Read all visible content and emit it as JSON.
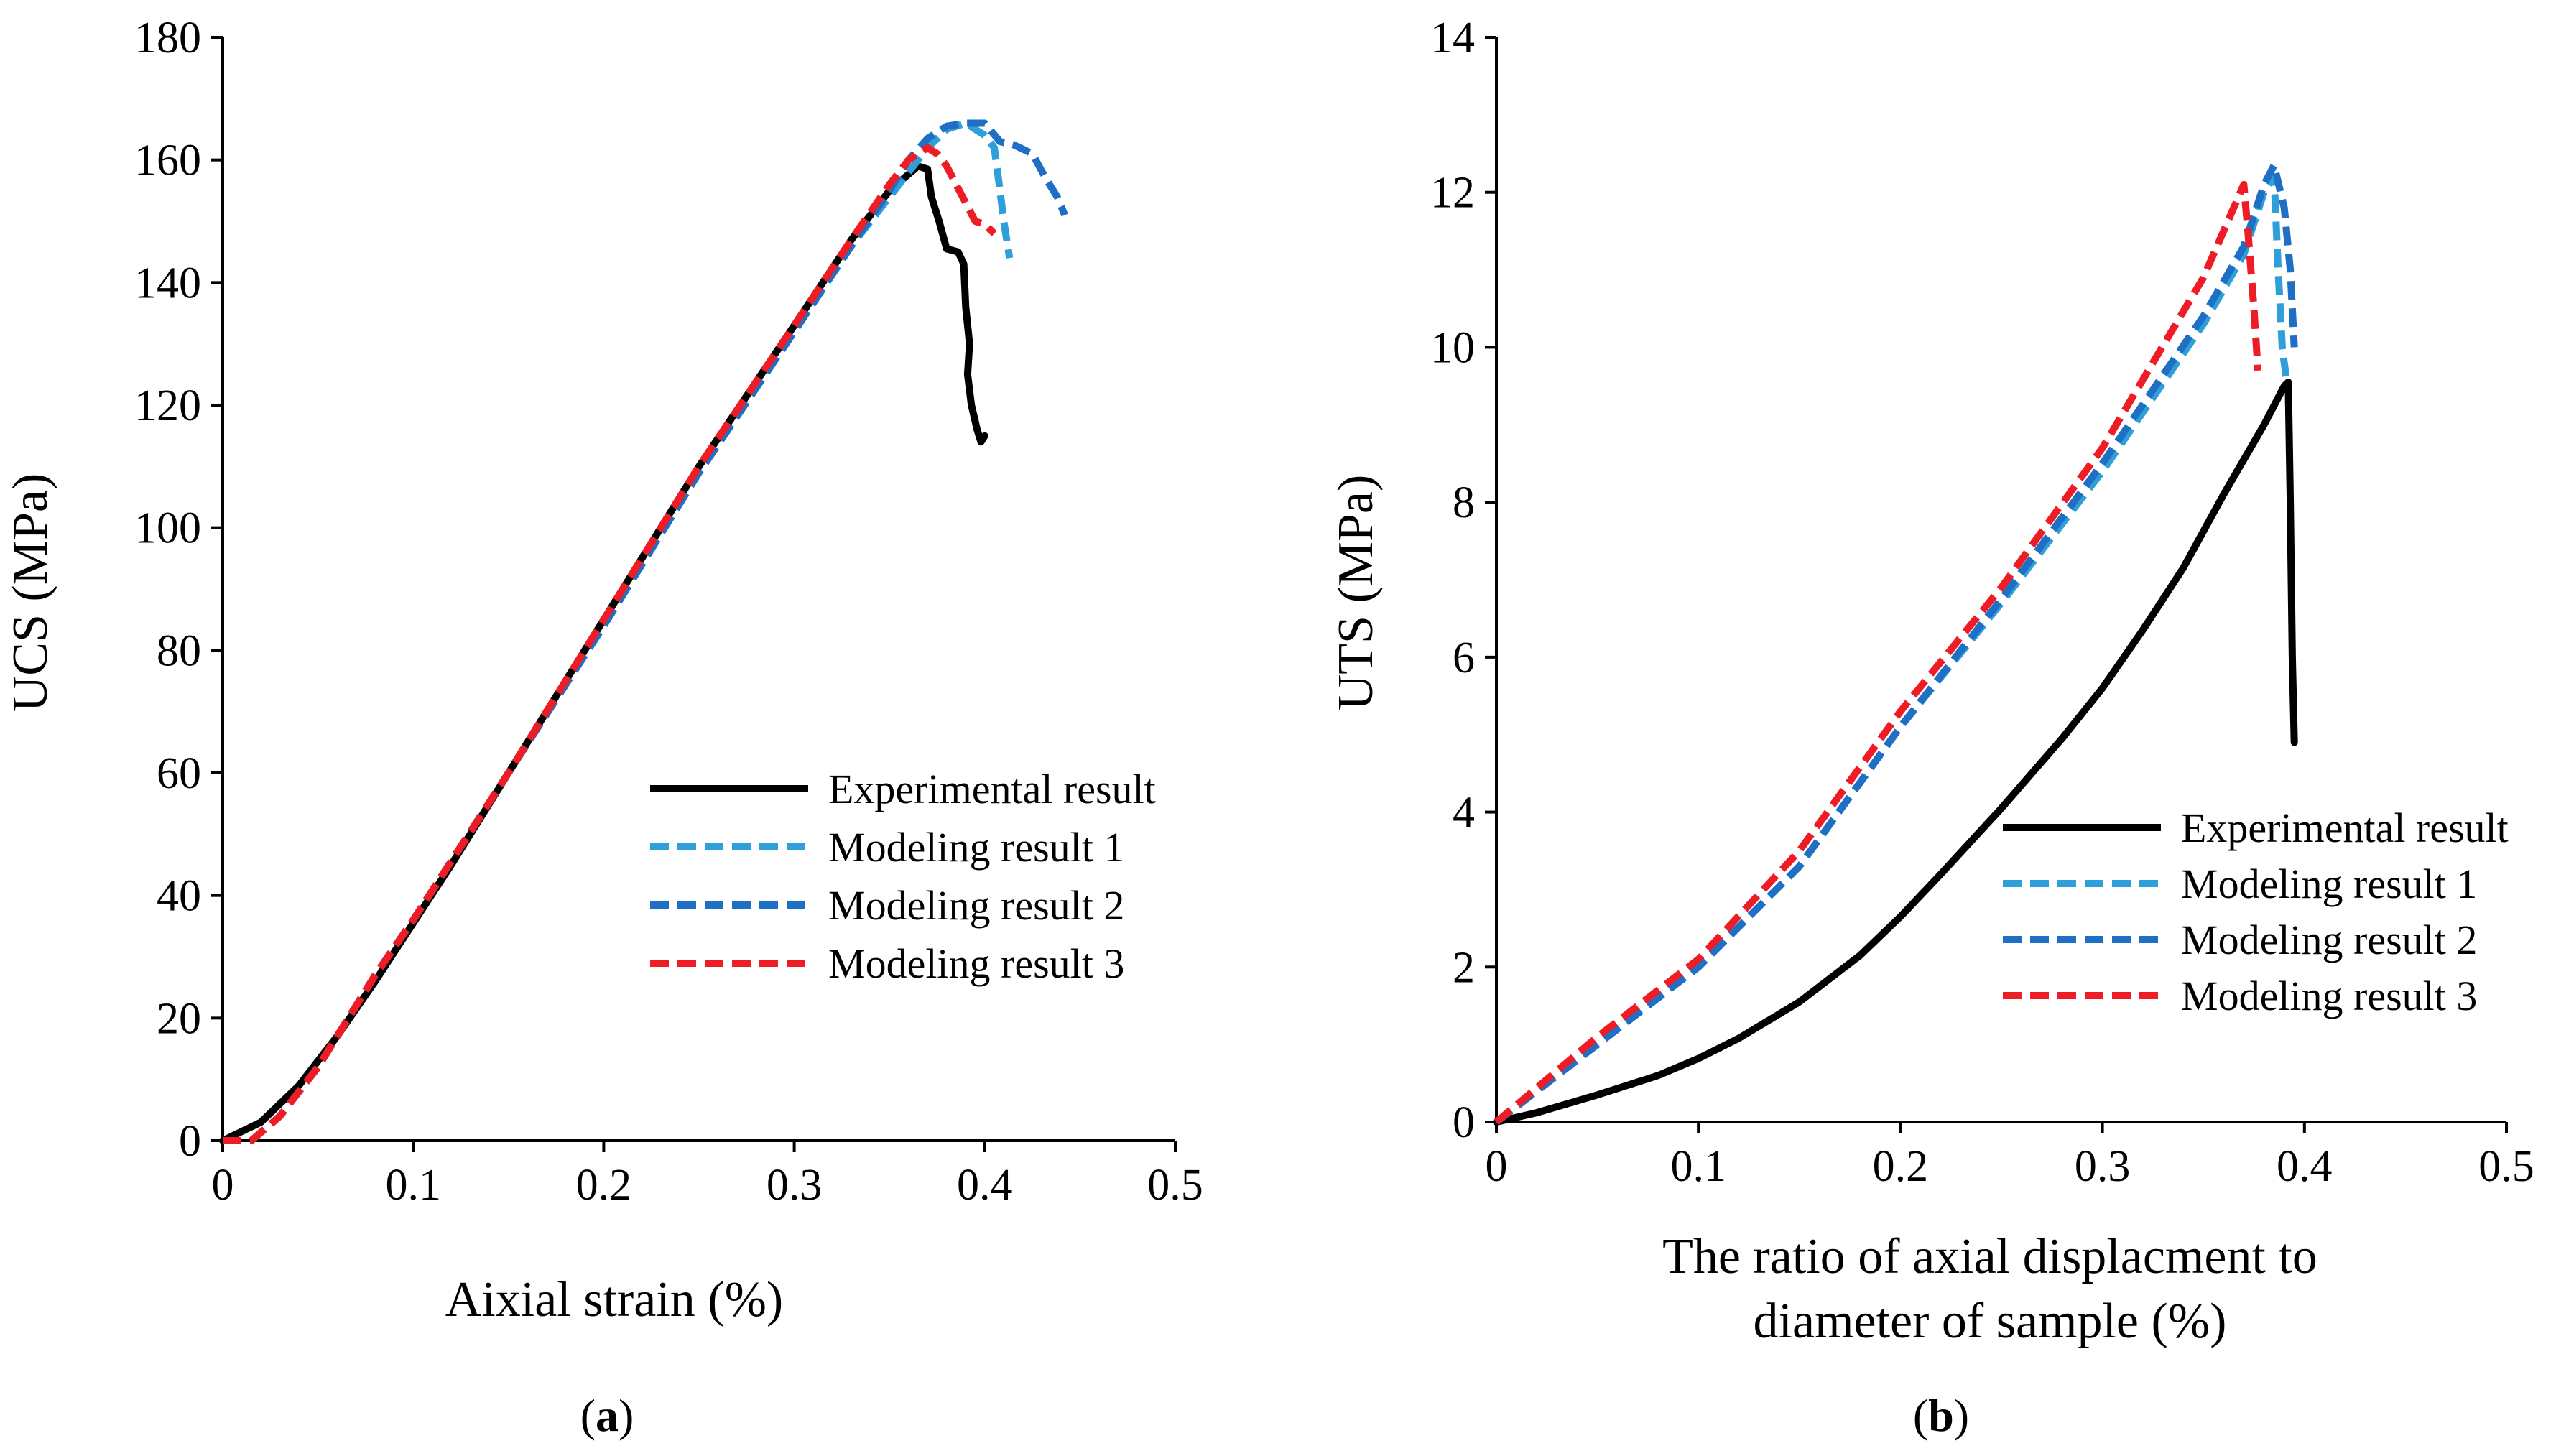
{
  "chart_data": [
    {
      "type": "line",
      "id": "a",
      "caption_open": "(",
      "caption_letter": "a",
      "caption_close": ")",
      "title": "",
      "xlabel": "Aixial strain (%)",
      "ylabel": "UCS (MPa)",
      "xlim": [
        0,
        0.5
      ],
      "ylim": [
        0,
        180
      ],
      "xticks": [
        0,
        0.1,
        0.2,
        0.3,
        0.4,
        0.5
      ],
      "xtick_labels": [
        "0",
        "0.1",
        "0.2",
        "0.3",
        "0.4",
        "0.5"
      ],
      "yticks": [
        0,
        20,
        40,
        60,
        80,
        100,
        120,
        140,
        160,
        180
      ],
      "ytick_labels": [
        "0",
        "20",
        "40",
        "60",
        "80",
        "100",
        "120",
        "140",
        "160",
        "180"
      ],
      "grid": false,
      "legend_position": "center-right",
      "series": [
        {
          "name": "Experimental result",
          "color": "#000000",
          "dash": "solid",
          "points": [
            [
              0,
              0
            ],
            [
              0.02,
              3
            ],
            [
              0.04,
              9
            ],
            [
              0.06,
              17
            ],
            [
              0.08,
              26
            ],
            [
              0.1,
              35.5
            ],
            [
              0.12,
              45
            ],
            [
              0.15,
              60
            ],
            [
              0.2,
              85
            ],
            [
              0.25,
              110
            ],
            [
              0.3,
              133
            ],
            [
              0.33,
              147
            ],
            [
              0.35,
              155
            ],
            [
              0.365,
              159
            ],
            [
              0.37,
              158.5
            ],
            [
              0.372,
              154
            ],
            [
              0.376,
              150
            ],
            [
              0.38,
              145.5
            ],
            [
              0.386,
              145
            ],
            [
              0.389,
              143
            ],
            [
              0.39,
              136
            ],
            [
              0.392,
              130
            ],
            [
              0.391,
              125
            ],
            [
              0.393,
              120
            ],
            [
              0.396,
              116
            ],
            [
              0.398,
              114
            ],
            [
              0.4,
              115
            ]
          ]
        },
        {
          "name": "Modeling result 1",
          "color": "#2f9fda",
          "dash": "dashed",
          "points": [
            [
              0,
              0
            ],
            [
              0.015,
              0
            ],
            [
              0.03,
              4
            ],
            [
              0.05,
              12
            ],
            [
              0.08,
              27
            ],
            [
              0.1,
              36
            ],
            [
              0.15,
              60
            ],
            [
              0.2,
              84
            ],
            [
              0.25,
              109
            ],
            [
              0.3,
              132
            ],
            [
              0.33,
              146
            ],
            [
              0.35,
              154
            ],
            [
              0.36,
              158
            ],
            [
              0.37,
              162
            ],
            [
              0.38,
              165
            ],
            [
              0.39,
              166
            ],
            [
              0.4,
              164
            ],
            [
              0.405,
              162
            ],
            [
              0.408,
              155
            ],
            [
              0.41,
              150
            ],
            [
              0.413,
              144
            ]
          ]
        },
        {
          "name": "Modeling result 2",
          "color": "#1f6fc4",
          "dash": "dashed",
          "points": [
            [
              0,
              0
            ],
            [
              0.015,
              0
            ],
            [
              0.03,
              4
            ],
            [
              0.05,
              12
            ],
            [
              0.08,
              27
            ],
            [
              0.1,
              36
            ],
            [
              0.15,
              60
            ],
            [
              0.2,
              84
            ],
            [
              0.25,
              109
            ],
            [
              0.3,
              132
            ],
            [
              0.33,
              146
            ],
            [
              0.35,
              155
            ],
            [
              0.36,
              160
            ],
            [
              0.37,
              163.5
            ],
            [
              0.38,
              165.5
            ],
            [
              0.39,
              166
            ],
            [
              0.4,
              166
            ],
            [
              0.408,
              163
            ],
            [
              0.415,
              162.5
            ],
            [
              0.425,
              161
            ],
            [
              0.432,
              157
            ],
            [
              0.438,
              154
            ],
            [
              0.442,
              151
            ]
          ]
        },
        {
          "name": "Modeling result 3",
          "color": "#ee1c25",
          "dash": "dashed",
          "points": [
            [
              0,
              0
            ],
            [
              0.015,
              0
            ],
            [
              0.03,
              4
            ],
            [
              0.05,
              12
            ],
            [
              0.08,
              27
            ],
            [
              0.1,
              36
            ],
            [
              0.15,
              60
            ],
            [
              0.2,
              85
            ],
            [
              0.25,
              110
            ],
            [
              0.3,
              133
            ],
            [
              0.33,
              147
            ],
            [
              0.35,
              156
            ],
            [
              0.36,
              160
            ],
            [
              0.37,
              162
            ],
            [
              0.375,
              161
            ],
            [
              0.38,
              159
            ],
            [
              0.385,
              156
            ],
            [
              0.39,
              153
            ],
            [
              0.395,
              150
            ],
            [
              0.4,
              149.5
            ],
            [
              0.405,
              148
            ]
          ]
        }
      ]
    },
    {
      "type": "line",
      "id": "b",
      "caption_open": "(",
      "caption_letter": "b",
      "caption_close": ")",
      "title": "",
      "xlabel_lines": [
        "The ratio of axial displacment to",
        "diameter of sample (%)"
      ],
      "ylabel": "UTS (MPa)",
      "xlim": [
        0,
        0.5
      ],
      "ylim": [
        0,
        14
      ],
      "xticks": [
        0,
        0.1,
        0.2,
        0.3,
        0.4,
        0.5
      ],
      "xtick_labels": [
        "0",
        "0.1",
        "0.2",
        "0.3",
        "0.4",
        "0.5"
      ],
      "yticks": [
        0,
        2,
        4,
        6,
        8,
        10,
        12,
        14
      ],
      "ytick_labels": [
        "0",
        "2",
        "4",
        "6",
        "8",
        "10",
        "12",
        "14"
      ],
      "grid": false,
      "legend_position": "bottom-right",
      "series": [
        {
          "name": "Experimental result",
          "color": "#000000",
          "dash": "solid",
          "points": [
            [
              0,
              0
            ],
            [
              0.02,
              0.12
            ],
            [
              0.05,
              0.35
            ],
            [
              0.08,
              0.6
            ],
            [
              0.1,
              0.82
            ],
            [
              0.12,
              1.08
            ],
            [
              0.15,
              1.55
            ],
            [
              0.18,
              2.15
            ],
            [
              0.2,
              2.65
            ],
            [
              0.22,
              3.2
            ],
            [
              0.25,
              4.05
            ],
            [
              0.28,
              4.95
            ],
            [
              0.3,
              5.6
            ],
            [
              0.32,
              6.35
            ],
            [
              0.34,
              7.15
            ],
            [
              0.36,
              8.1
            ],
            [
              0.38,
              9.0
            ],
            [
              0.39,
              9.5
            ],
            [
              0.392,
              9.55
            ],
            [
              0.393,
              8.0
            ],
            [
              0.394,
              6.0
            ],
            [
              0.395,
              4.9
            ]
          ]
        },
        {
          "name": "Modeling result 1",
          "color": "#2f9fda",
          "dash": "dashed",
          "points": [
            [
              0,
              0
            ],
            [
              0.05,
              1.0
            ],
            [
              0.1,
              2.0
            ],
            [
              0.15,
              3.3
            ],
            [
              0.2,
              5.1
            ],
            [
              0.25,
              6.7
            ],
            [
              0.3,
              8.4
            ],
            [
              0.35,
              10.3
            ],
            [
              0.37,
              11.2
            ],
            [
              0.38,
              12.0
            ],
            [
              0.385,
              12.2
            ],
            [
              0.387,
              11.0
            ],
            [
              0.389,
              10.0
            ],
            [
              0.391,
              9.6
            ]
          ]
        },
        {
          "name": "Modeling result 2",
          "color": "#1f6fc4",
          "dash": "dashed",
          "points": [
            [
              0,
              0
            ],
            [
              0.05,
              1.0
            ],
            [
              0.1,
              2.0
            ],
            [
              0.15,
              3.3
            ],
            [
              0.2,
              5.1
            ],
            [
              0.25,
              6.75
            ],
            [
              0.3,
              8.5
            ],
            [
              0.35,
              10.4
            ],
            [
              0.37,
              11.3
            ],
            [
              0.38,
              12.1
            ],
            [
              0.385,
              12.35
            ],
            [
              0.39,
              11.8
            ],
            [
              0.393,
              11.0
            ],
            [
              0.395,
              10.0
            ]
          ]
        },
        {
          "name": "Modeling result 3",
          "color": "#ee1c25",
          "dash": "dashed",
          "points": [
            [
              0,
              0
            ],
            [
              0.05,
              1.1
            ],
            [
              0.1,
              2.1
            ],
            [
              0.15,
              3.5
            ],
            [
              0.2,
              5.3
            ],
            [
              0.25,
              6.9
            ],
            [
              0.3,
              8.7
            ],
            [
              0.35,
              10.9
            ],
            [
              0.365,
              11.8
            ],
            [
              0.37,
              12.1
            ],
            [
              0.372,
              11.5
            ],
            [
              0.375,
              10.5
            ],
            [
              0.377,
              9.7
            ]
          ]
        }
      ]
    }
  ]
}
